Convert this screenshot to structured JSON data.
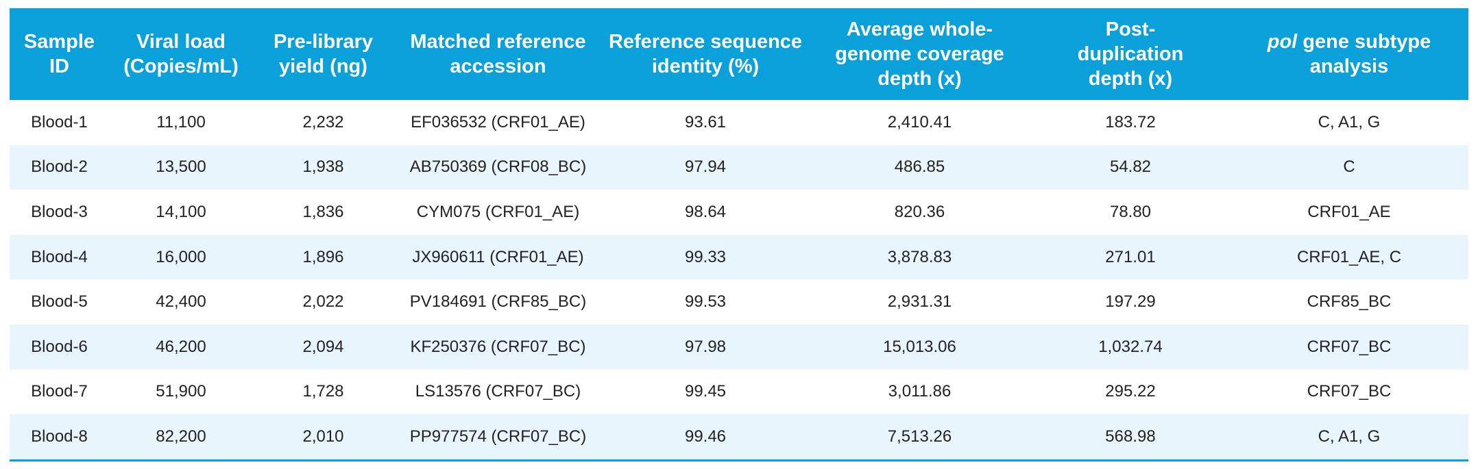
{
  "columns": [
    [
      "Sample",
      "ID"
    ],
    [
      "Viral load",
      "(Copies/mL)"
    ],
    [
      "Pre-library",
      "yield (ng)"
    ],
    [
      "Matched reference",
      "accession"
    ],
    [
      "Reference sequence",
      "identity (%)"
    ],
    [
      "Average whole-",
      "genome coverage",
      "depth (x)"
    ],
    [
      "Post-",
      "duplication",
      "depth (x)"
    ]
  ],
  "last_column": {
    "italic": "pol",
    "line1_rest": " gene subtype",
    "line2": "analysis"
  },
  "rows": [
    [
      "Blood-1",
      "11,100",
      "2,232",
      "EF036532 (CRF01_AE)",
      "93.61",
      "2,410.41",
      "183.72",
      "C, A1, G"
    ],
    [
      "Blood-2",
      "13,500",
      "1,938",
      "AB750369 (CRF08_BC)",
      "97.94",
      "486.85",
      "54.82",
      "C"
    ],
    [
      "Blood-3",
      "14,100",
      "1,836",
      "CYM075 (CRF01_AE)",
      "98.64",
      "820.36",
      "78.80",
      "CRF01_AE"
    ],
    [
      "Blood-4",
      "16,000",
      "1,896",
      "JX960611 (CRF01_AE)",
      "99.33",
      "3,878.83",
      "271.01",
      "CRF01_AE, C"
    ],
    [
      "Blood-5",
      "42,400",
      "2,022",
      "PV184691 (CRF85_BC)",
      "99.53",
      "2,931.31",
      "197.29",
      "CRF85_BC"
    ],
    [
      "Blood-6",
      "46,200",
      "2,094",
      "KF250376 (CRF07_BC)",
      "97.98",
      "15,013.06",
      "1,032.74",
      "CRF07_BC"
    ],
    [
      "Blood-7",
      "51,900",
      "1,728",
      "LS13576 (CRF07_BC)",
      "99.45",
      "3,011.86",
      "295.22",
      "CRF07_BC"
    ],
    [
      "Blood-8",
      "82,200",
      "2,010",
      "PP977574 (CRF07_BC)",
      "99.46",
      "7,513.26",
      "568.98",
      "C, A1, G"
    ]
  ],
  "colors": {
    "header_bg": "#0aa1db",
    "alt_row_bg": "#e9f5fc",
    "header_text": "#ffffff"
  }
}
